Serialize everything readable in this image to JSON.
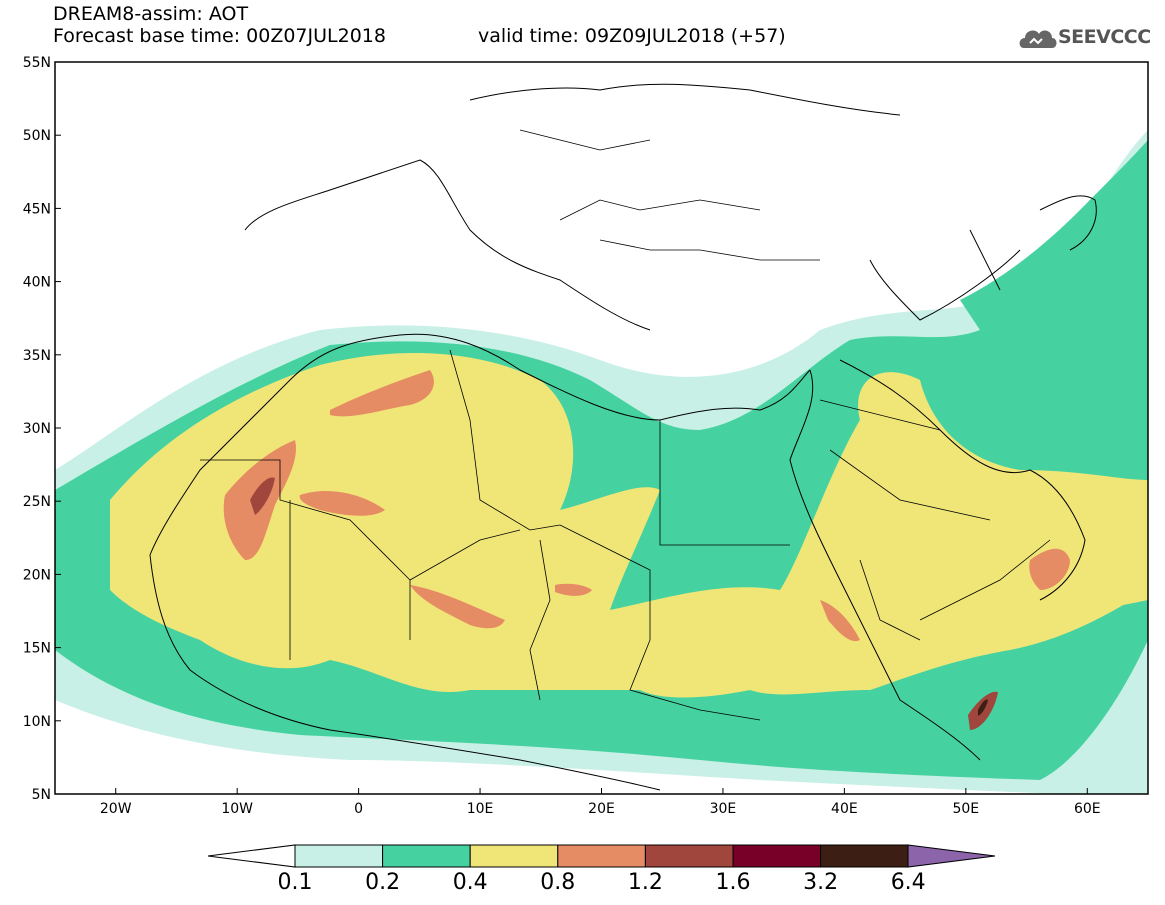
{
  "header": {
    "title": "DREAM8-assim: AOT",
    "base_time": "Forecast base time: 00Z07JUL2018",
    "valid_time": "valid time: 09Z09JUL2018 (+57)"
  },
  "logo": {
    "text": "SEEVCCC",
    "icon": "cloud-icon"
  },
  "map": {
    "lat_labels": [
      "55N",
      "50N",
      "45N",
      "40N",
      "35N",
      "30N",
      "25N",
      "20N",
      "15N",
      "10N",
      "5N"
    ],
    "lon_labels": [
      "20W",
      "10W",
      "0",
      "10E",
      "20E",
      "30E",
      "40E",
      "50E",
      "60E"
    ],
    "lat_range": [
      5,
      55
    ],
    "lon_range": [
      -25,
      65
    ]
  },
  "colorbar": {
    "colors": [
      "#c8f0e6",
      "#46d2a0",
      "#f0e678",
      "#e68c64",
      "#a0463c",
      "#780028",
      "#3c1e14"
    ],
    "under_color": "#ffffff",
    "over_color": "#8c64aa",
    "labels": [
      "0.1",
      "0.2",
      "0.4",
      "0.8",
      "1.2",
      "1.6",
      "3.2",
      "6.4"
    ]
  }
}
